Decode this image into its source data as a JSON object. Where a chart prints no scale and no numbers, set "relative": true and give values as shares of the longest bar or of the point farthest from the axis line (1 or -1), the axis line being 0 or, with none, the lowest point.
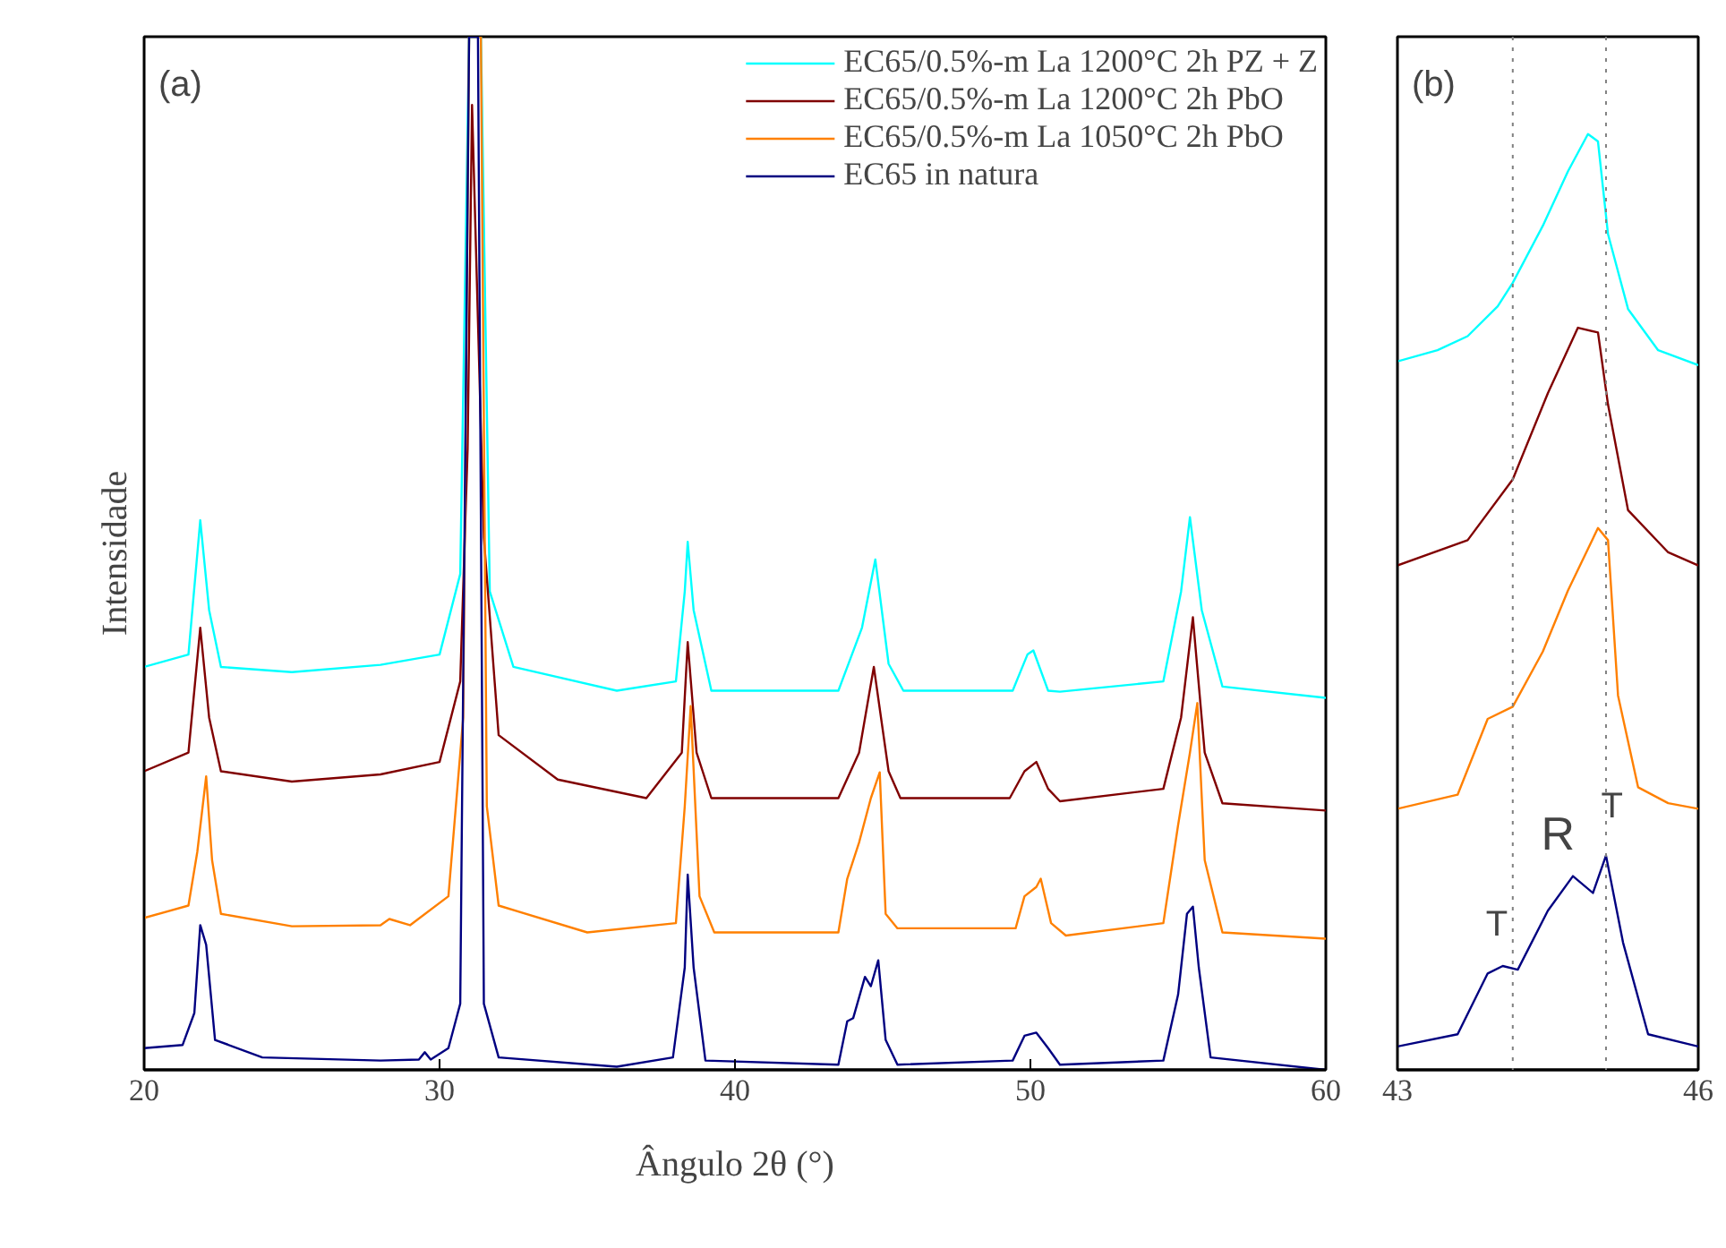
{
  "chart_data": [
    {
      "type": "line",
      "title": "(a)",
      "xlabel": "Ângulo 2θ (°)",
      "ylabel": "Intensidade",
      "relative": true,
      "xlim": [
        20,
        60
      ],
      "xticks": [
        20,
        30,
        40,
        50,
        60
      ],
      "grid": false,
      "legend": "top right",
      "marker": "none",
      "line_style": "solid",
      "series": [
        {
          "name": "EC65/0.5%-m La 1200°C 2h PZ + Z",
          "color": "#00ffff",
          "x": [
            20,
            21.5,
            21.9,
            22.2,
            22.6,
            25,
            28,
            30,
            30.7,
            31.0,
            31.4,
            31.7,
            32.5,
            36,
            38,
            38.3,
            38.4,
            38.6,
            39.2,
            43.5,
            44.3,
            44.75,
            45.2,
            45.7,
            49.4,
            49.9,
            50.1,
            50.6,
            51,
            54.5,
            55.1,
            55.4,
            55.8,
            56.5,
            60
          ],
          "values": [
            0.39,
            0.402,
            0.532,
            0.445,
            0.39,
            0.385,
            0.392,
            0.402,
            0.48,
            1,
            1,
            0.463,
            0.39,
            0.367,
            0.376,
            0.463,
            0.511,
            0.445,
            0.367,
            0.367,
            0.428,
            0.494,
            0.393,
            0.367,
            0.367,
            0.402,
            0.406,
            0.367,
            0.366,
            0.376,
            0.463,
            0.535,
            0.445,
            0.371,
            0.36
          ]
        },
        {
          "name": "EC65/0.5%-m La 1200°C 2h PbO",
          "color": "#800000",
          "x": [
            20,
            21.5,
            21.9,
            22.2,
            22.6,
            25,
            28,
            30,
            30.7,
            30.95,
            31.1,
            31.5,
            32,
            34,
            37,
            38.2,
            38.4,
            38.7,
            39.2,
            43.5,
            44.2,
            44.7,
            45.2,
            45.6,
            49.3,
            49.8,
            50.2,
            50.6,
            51,
            54.5,
            55.1,
            55.5,
            55.9,
            56.5,
            60
          ],
          "values": [
            0.289,
            0.307,
            0.428,
            0.341,
            0.289,
            0.279,
            0.286,
            0.298,
            0.376,
            0.601,
            0.934,
            0.515,
            0.324,
            0.281,
            0.263,
            0.307,
            0.414,
            0.307,
            0.263,
            0.263,
            0.307,
            0.39,
            0.289,
            0.263,
            0.263,
            0.289,
            0.298,
            0.272,
            0.26,
            0.272,
            0.341,
            0.438,
            0.307,
            0.258,
            0.251
          ]
        },
        {
          "name": "EC65/0.5%-m La 1050°C 2h PbO",
          "color": "#ff8000",
          "x": [
            20,
            21.5,
            21.8,
            22.1,
            22.3,
            22.6,
            25,
            28,
            28.3,
            29,
            30.3,
            30.8,
            31.0,
            31.4,
            31.6,
            32,
            35,
            38,
            38.3,
            38.5,
            38.8,
            39.3,
            43.5,
            43.8,
            44.2,
            44.6,
            44.9,
            45.1,
            45.5,
            49.5,
            49.8,
            50.2,
            50.35,
            50.7,
            51.2,
            54.5,
            55,
            55.4,
            55.65,
            55.9,
            56.5,
            60
          ],
          "values": [
            0.147,
            0.159,
            0.211,
            0.284,
            0.203,
            0.151,
            0.139,
            0.14,
            0.146,
            0.14,
            0.168,
            0.341,
            1,
            1,
            0.255,
            0.159,
            0.133,
            0.142,
            0.255,
            0.352,
            0.168,
            0.133,
            0.133,
            0.185,
            0.22,
            0.263,
            0.288,
            0.151,
            0.137,
            0.137,
            0.168,
            0.177,
            0.185,
            0.142,
            0.13,
            0.142,
            0.237,
            0.307,
            0.355,
            0.203,
            0.133,
            0.127
          ]
        },
        {
          "name": "EC65 in natura",
          "color": "#000080",
          "x": [
            20,
            21.3,
            21.7,
            21.9,
            22.1,
            22.4,
            24,
            28,
            29.3,
            29.5,
            29.7,
            30.3,
            30.7,
            31.0,
            31.3,
            31.5,
            32,
            36,
            37.9,
            38.3,
            38.4,
            38.6,
            39,
            43.5,
            43.8,
            44.0,
            44.4,
            44.6,
            44.85,
            45.1,
            45.5,
            49.4,
            49.8,
            50.2,
            50.6,
            51,
            54.5,
            55,
            55.3,
            55.5,
            55.7,
            56.1,
            60
          ],
          "values": [
            0.021,
            0.024,
            0.055,
            0.14,
            0.121,
            0.029,
            0.012,
            0.009,
            0.01,
            0.017,
            0.01,
            0.021,
            0.064,
            1,
            1,
            0.064,
            0.012,
            0.003,
            0.012,
            0.099,
            0.189,
            0.099,
            0.009,
            0.005,
            0.047,
            0.05,
            0.09,
            0.081,
            0.106,
            0.029,
            0.005,
            0.009,
            0.033,
            0.036,
            0.021,
            0.005,
            0.009,
            0.073,
            0.151,
            0.158,
            0.099,
            0.012,
            0
          ]
        }
      ]
    },
    {
      "type": "line",
      "title": "(b)",
      "relative": true,
      "xlim": [
        43,
        46
      ],
      "xticks": [
        43,
        46
      ],
      "grid": false,
      "marker": "none",
      "line_style": "solid",
      "ref_lines": [
        {
          "axis": "x",
          "value": 44.15,
          "color": "#808080",
          "line_style": "dotted"
        },
        {
          "axis": "x",
          "value": 45.08,
          "color": "#808080",
          "line_style": "dotted"
        }
      ],
      "annotations": [
        "T",
        "R",
        "T"
      ],
      "series": [
        {
          "color": "#00ffff",
          "x": [
            43,
            43.4,
            43.7,
            44.0,
            44.15,
            44.45,
            44.7,
            44.9,
            45.0,
            45.1,
            45.3,
            45.6,
            46
          ],
          "values": [
            0.757,
            0.769,
            0.784,
            0.816,
            0.841,
            0.902,
            0.96,
            1,
            0.992,
            0.893,
            0.813,
            0.769,
            0.753
          ]
        },
        {
          "color": "#800000",
          "x": [
            43,
            43.7,
            44.15,
            44.5,
            44.8,
            45.0,
            45.1,
            45.3,
            45.7,
            46
          ],
          "values": [
            0.539,
            0.566,
            0.631,
            0.723,
            0.793,
            0.788,
            0.711,
            0.598,
            0.553,
            0.539
          ]
        },
        {
          "color": "#ff8000",
          "x": [
            43,
            43.6,
            43.9,
            44.15,
            44.45,
            44.7,
            45.0,
            45.1,
            45.2,
            45.4,
            45.7,
            46
          ],
          "values": [
            0.279,
            0.294,
            0.375,
            0.388,
            0.447,
            0.512,
            0.579,
            0.566,
            0.4,
            0.302,
            0.285,
            0.279
          ]
        },
        {
          "color": "#000080",
          "x": [
            43,
            43.6,
            43.9,
            44.05,
            44.2,
            44.5,
            44.75,
            44.95,
            45.08,
            45.25,
            45.5,
            46
          ],
          "values": [
            0.025,
            0.038,
            0.103,
            0.111,
            0.107,
            0.17,
            0.207,
            0.189,
            0.229,
            0.136,
            0.038,
            0.025
          ]
        }
      ]
    }
  ]
}
